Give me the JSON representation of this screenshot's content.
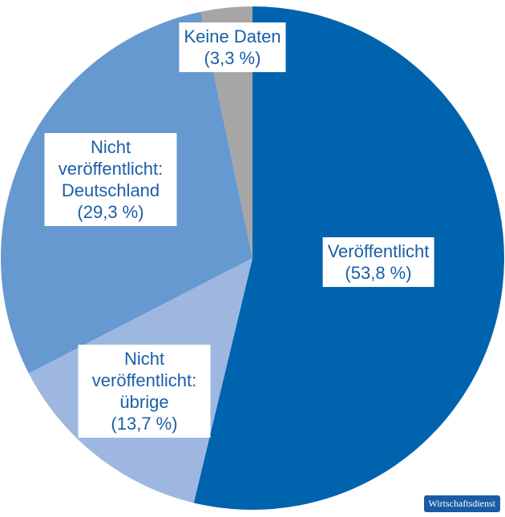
{
  "chart_data": {
    "type": "pie",
    "categories": [
      "Veröffentlicht",
      "Nicht veröffentlicht: übrige",
      "Nicht veröffentlicht: Deutschland",
      "Keine Daten"
    ],
    "values": [
      53.8,
      13.7,
      29.3,
      3.3
    ],
    "value_labels": [
      "(53,8 %)",
      "(13,7 %)",
      "(29,3 %)",
      "(3,3 %)"
    ],
    "colors": [
      "#0063ae",
      "#9db7e1",
      "#6699cf",
      "#a6a6a6"
    ],
    "start_angle": 0,
    "direction": "clockwise",
    "source": "Wirtschaftsdienst"
  }
}
